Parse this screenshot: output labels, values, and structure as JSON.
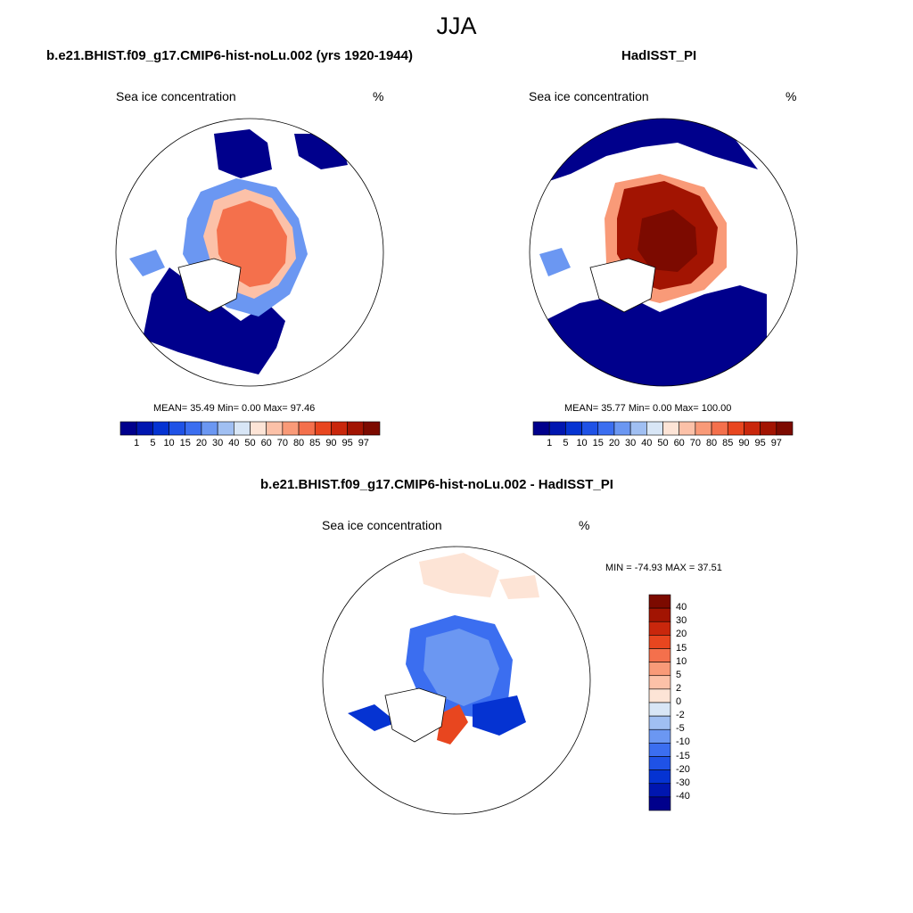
{
  "figure_title": "JJA",
  "panels": [
    {
      "title": "b.e21.BHIST.f09_g17.CMIP6-hist-noLu.002 (yrs 1920-1944)",
      "variable": "Sea ice concentration",
      "units": "%",
      "stats": "MEAN=  35.49  Min=   0.00  Max=  97.46"
    },
    {
      "title": "HadISST_PI",
      "variable": "Sea ice concentration",
      "units": "%",
      "stats": "MEAN=  35.77  Min=   0.00  Max= 100.00"
    },
    {
      "title": "b.e21.BHIST.f09_g17.CMIP6-hist-noLu.002 - HadISST_PI",
      "variable": "Sea ice concentration",
      "units": "%",
      "stats": "MIN = -74.93 MAX =  37.51"
    }
  ],
  "chart_data": [
    {
      "type": "heatmap",
      "title": "b.e21.BHIST.f09_g17.CMIP6-hist-noLu.002 (yrs 1920-1944)",
      "projection": "north-polar-stereographic",
      "variable": "Sea ice concentration",
      "units": "%",
      "mean": 35.49,
      "min": 0.0,
      "max": 97.46,
      "colorbar_orientation": "horizontal",
      "colorbar_levels": [
        1,
        5,
        10,
        15,
        20,
        30,
        40,
        50,
        60,
        70,
        80,
        85,
        90,
        95,
        97
      ],
      "colorbar_colors": [
        "#00008c",
        "#0016b0",
        "#0533d2",
        "#1f52e6",
        "#3b6ef0",
        "#6b97f2",
        "#a0bff2",
        "#d8e6f6",
        "#fde4d6",
        "#fcc1a8",
        "#f99a78",
        "#f4704c",
        "#e8461f",
        "#c9270c",
        "#a21402",
        "#7c0a00"
      ]
    },
    {
      "type": "heatmap",
      "title": "HadISST_PI",
      "projection": "north-polar-stereographic",
      "variable": "Sea ice concentration",
      "units": "%",
      "mean": 35.77,
      "min": 0.0,
      "max": 100.0,
      "colorbar_orientation": "horizontal",
      "colorbar_levels": [
        1,
        5,
        10,
        15,
        20,
        30,
        40,
        50,
        60,
        70,
        80,
        85,
        90,
        95,
        97
      ],
      "colorbar_colors": [
        "#00008c",
        "#0016b0",
        "#0533d2",
        "#1f52e6",
        "#3b6ef0",
        "#6b97f2",
        "#a0bff2",
        "#d8e6f6",
        "#fde4d6",
        "#fcc1a8",
        "#f99a78",
        "#f4704c",
        "#e8461f",
        "#c9270c",
        "#a21402",
        "#7c0a00"
      ]
    },
    {
      "type": "heatmap",
      "title": "b.e21.BHIST.f09_g17.CMIP6-hist-noLu.002 - HadISST_PI",
      "projection": "north-polar-stereographic",
      "variable": "Sea ice concentration",
      "units": "%",
      "min": -74.93,
      "max": 37.51,
      "colorbar_orientation": "vertical",
      "colorbar_levels": [
        40,
        30,
        20,
        15,
        10,
        5,
        2,
        0,
        -2,
        -5,
        -10,
        -15,
        -20,
        -30,
        -40
      ],
      "colorbar_colors": [
        "#7c0a00",
        "#a21402",
        "#c9270c",
        "#e8461f",
        "#f4704c",
        "#f99a78",
        "#fcc1a8",
        "#fde4d6",
        "#d8e6f6",
        "#a0bff2",
        "#6b97f2",
        "#3b6ef0",
        "#1f52e6",
        "#0533d2",
        "#0016b0",
        "#00008c"
      ]
    }
  ]
}
